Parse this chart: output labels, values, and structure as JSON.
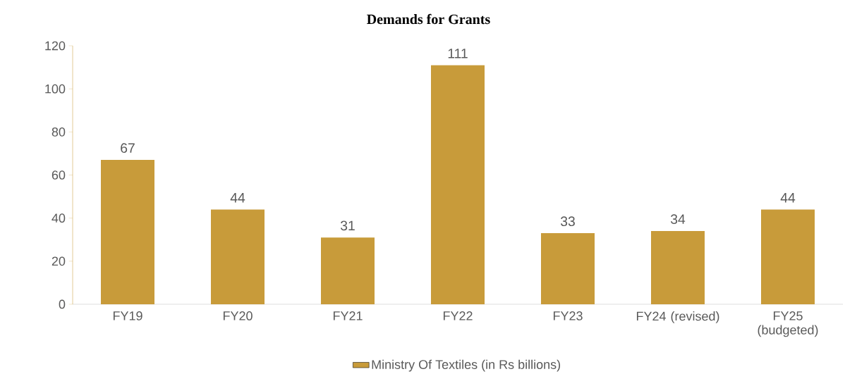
{
  "chart_data": {
    "type": "bar",
    "title": "Demands for Grants",
    "categories": [
      "FY19",
      "FY20",
      "FY21",
      "FY22",
      "FY23",
      "FY24 (revised)",
      "FY25 (budgeted)"
    ],
    "series": [
      {
        "name": "Ministry Of Textiles (in Rs billions)",
        "color": "#c89b3a",
        "values": [
          67,
          44,
          31,
          111,
          33,
          34,
          44
        ]
      }
    ],
    "ylim": [
      0,
      120
    ],
    "yticks": [
      0,
      20,
      40,
      60,
      80,
      100,
      120
    ],
    "data_labels": true,
    "legend": "bottom",
    "grid": false
  }
}
